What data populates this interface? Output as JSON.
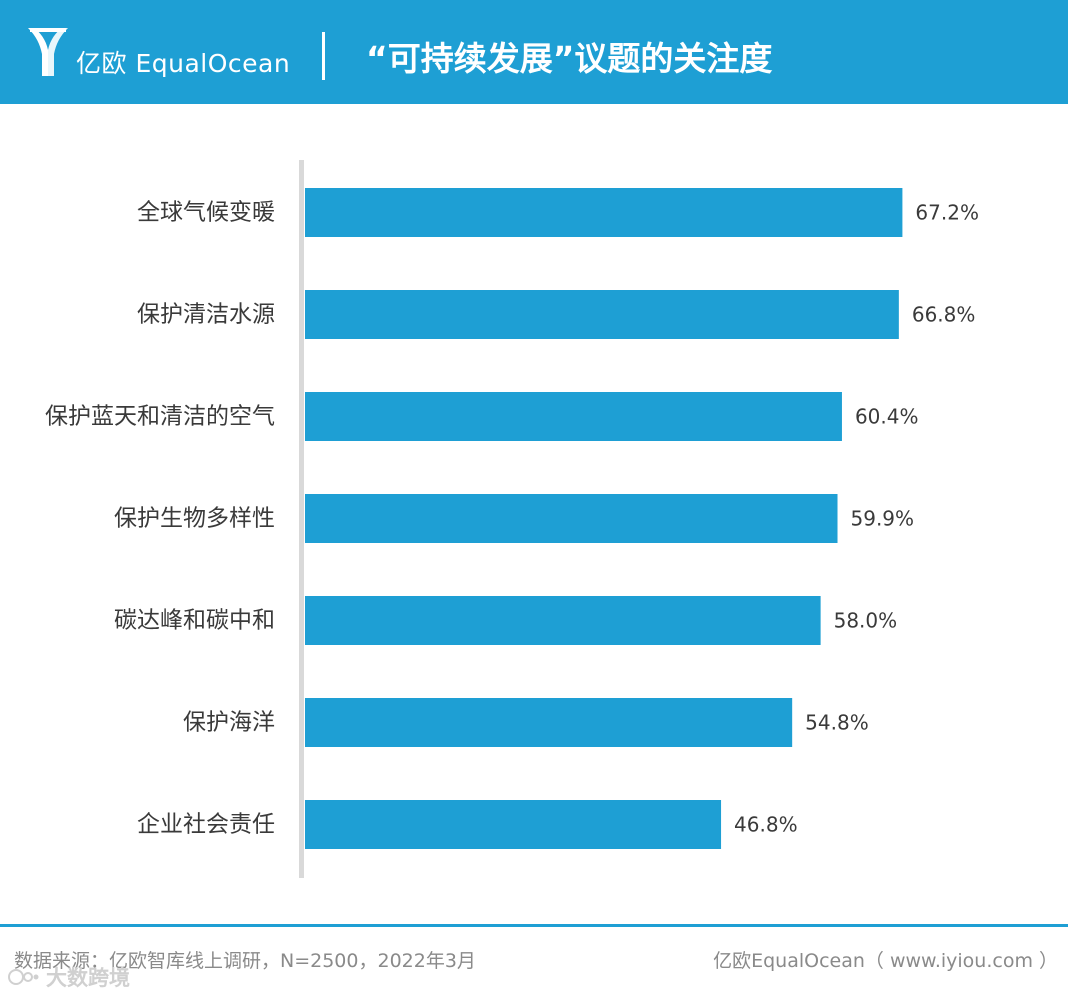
{
  "header": {
    "logo_text": "亿欧 EqualOcean",
    "title": "“可持续发展”议题的关注度",
    "background": "#1e9fd4"
  },
  "chart_data": {
    "type": "bar",
    "orientation": "horizontal",
    "categories": [
      "全球气候变暖",
      "保护清洁水源",
      "保护蓝天和清洁的空气",
      "保护生物多样性",
      "碳达峰和碳中和",
      "保护海洋",
      "企业社会责任"
    ],
    "values": [
      67.2,
      66.8,
      60.4,
      59.9,
      58.0,
      54.8,
      46.8
    ],
    "value_labels": [
      "67.2%",
      "66.8%",
      "60.4%",
      "59.9%",
      "58.0%",
      "54.8%",
      "46.8%"
    ],
    "unit": "%",
    "xlim": [
      0,
      100
    ],
    "bar_color": "#1e9fd4",
    "axis_color": "#d9d9d9",
    "grid": false,
    "legend": "none"
  },
  "footer": {
    "source": "数据来源：亿欧智库线上调研，N=2500，2022年3月",
    "brand": "亿欧EqualOcean（ www.iyiou.com ）",
    "watermark": "大数跨境",
    "line_color": "#1e9fd4"
  }
}
